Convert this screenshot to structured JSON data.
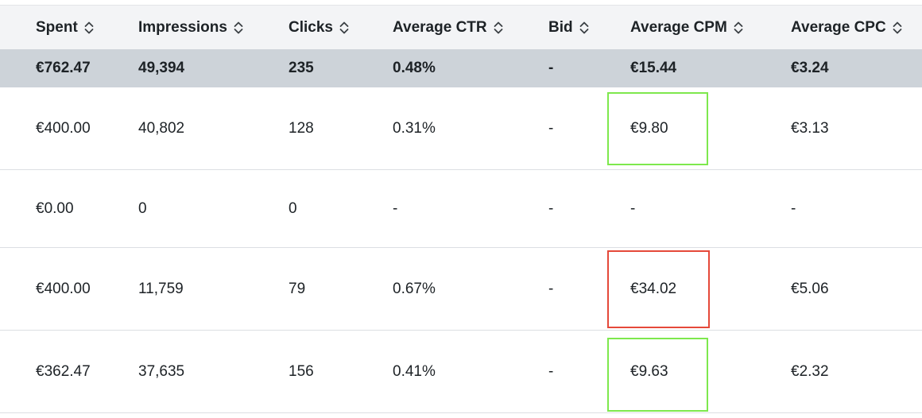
{
  "columns": [
    {
      "label": "Spent"
    },
    {
      "label": "Impressions"
    },
    {
      "label": "Clicks"
    },
    {
      "label": "Average CTR"
    },
    {
      "label": "Bid"
    },
    {
      "label": "Average CPM"
    },
    {
      "label": "Average CPC"
    }
  ],
  "totals": [
    "€762.47",
    "49,394",
    "235",
    "0.48%",
    "-",
    "€15.44",
    "€3.24"
  ],
  "rows": [
    [
      "€400.00",
      "40,802",
      "128",
      "0.31%",
      "-",
      "€9.80",
      "€3.13"
    ],
    [
      "€0.00",
      "0",
      "0",
      "-",
      "-",
      "-",
      "-"
    ],
    [
      "€400.00",
      "11,759",
      "79",
      "0.67%",
      "-",
      "€34.02",
      "€5.06"
    ],
    [
      "€362.47",
      "37,635",
      "156",
      "0.41%",
      "-",
      "€9.63",
      "€2.32"
    ]
  ],
  "icons": {
    "sort": "sort-up-down-icon"
  },
  "colors": {
    "highlight_good": "#7ee84d",
    "highlight_bad": "#e5493a"
  }
}
